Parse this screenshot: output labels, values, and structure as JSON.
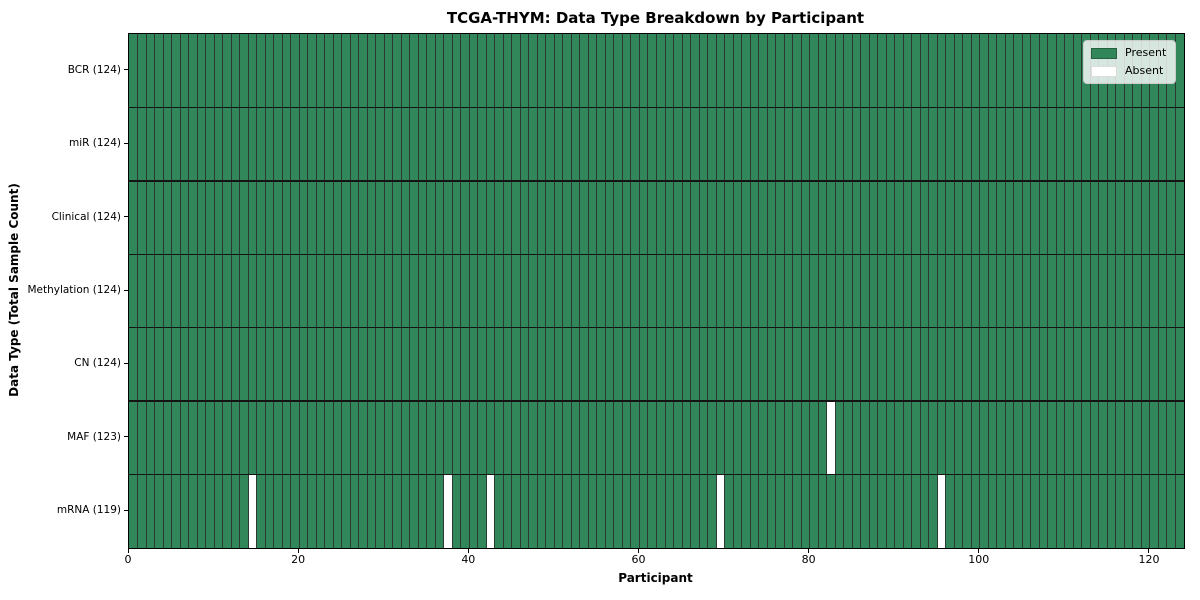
{
  "figure": {
    "title": "TCGA-THYM: Data Type Breakdown by Participant",
    "xlabel": "Participant",
    "ylabel": "Data Type (Total Sample Count)"
  },
  "legend": {
    "present_label": "Present",
    "absent_label": "Absent"
  },
  "colors": {
    "present": "#318759",
    "absent": "#ffffff",
    "grid_line": "#2a3a30",
    "row_separator": "#141414",
    "plot_border": "#000000"
  },
  "chart_data": {
    "type": "heatmap",
    "title": "TCGA-THYM: Data Type Breakdown by Participant",
    "xlabel": "Participant",
    "ylabel": "Data Type (Total Sample Count)",
    "n_participants": 124,
    "x_range": [
      0,
      124
    ],
    "x_ticks": [
      0,
      20,
      40,
      60,
      80,
      100,
      120
    ],
    "grid": "cell-edges",
    "legend_position": "upper right",
    "legend_entries": [
      "Present",
      "Absent"
    ],
    "value_encoding": {
      "present": 1,
      "absent": 0
    },
    "rows": [
      {
        "label": "BCR (124)",
        "data_type": "BCR",
        "present_count": 124,
        "absent_participants": []
      },
      {
        "label": "miR (124)",
        "data_type": "miR",
        "present_count": 124,
        "absent_participants": []
      },
      {
        "label": "Clinical (124)",
        "data_type": "Clinical",
        "present_count": 124,
        "absent_participants": []
      },
      {
        "label": "Methylation (124)",
        "data_type": "Methylation",
        "present_count": 124,
        "absent_participants": []
      },
      {
        "label": "CN (124)",
        "data_type": "CN",
        "present_count": 124,
        "absent_participants": []
      },
      {
        "label": "MAF (123)",
        "data_type": "MAF",
        "present_count": 123,
        "absent_participants": [
          82
        ]
      },
      {
        "label": "mRNA (119)",
        "data_type": "mRNA",
        "present_count": 119,
        "absent_participants": [
          14,
          37,
          42,
          69,
          95
        ]
      }
    ]
  }
}
